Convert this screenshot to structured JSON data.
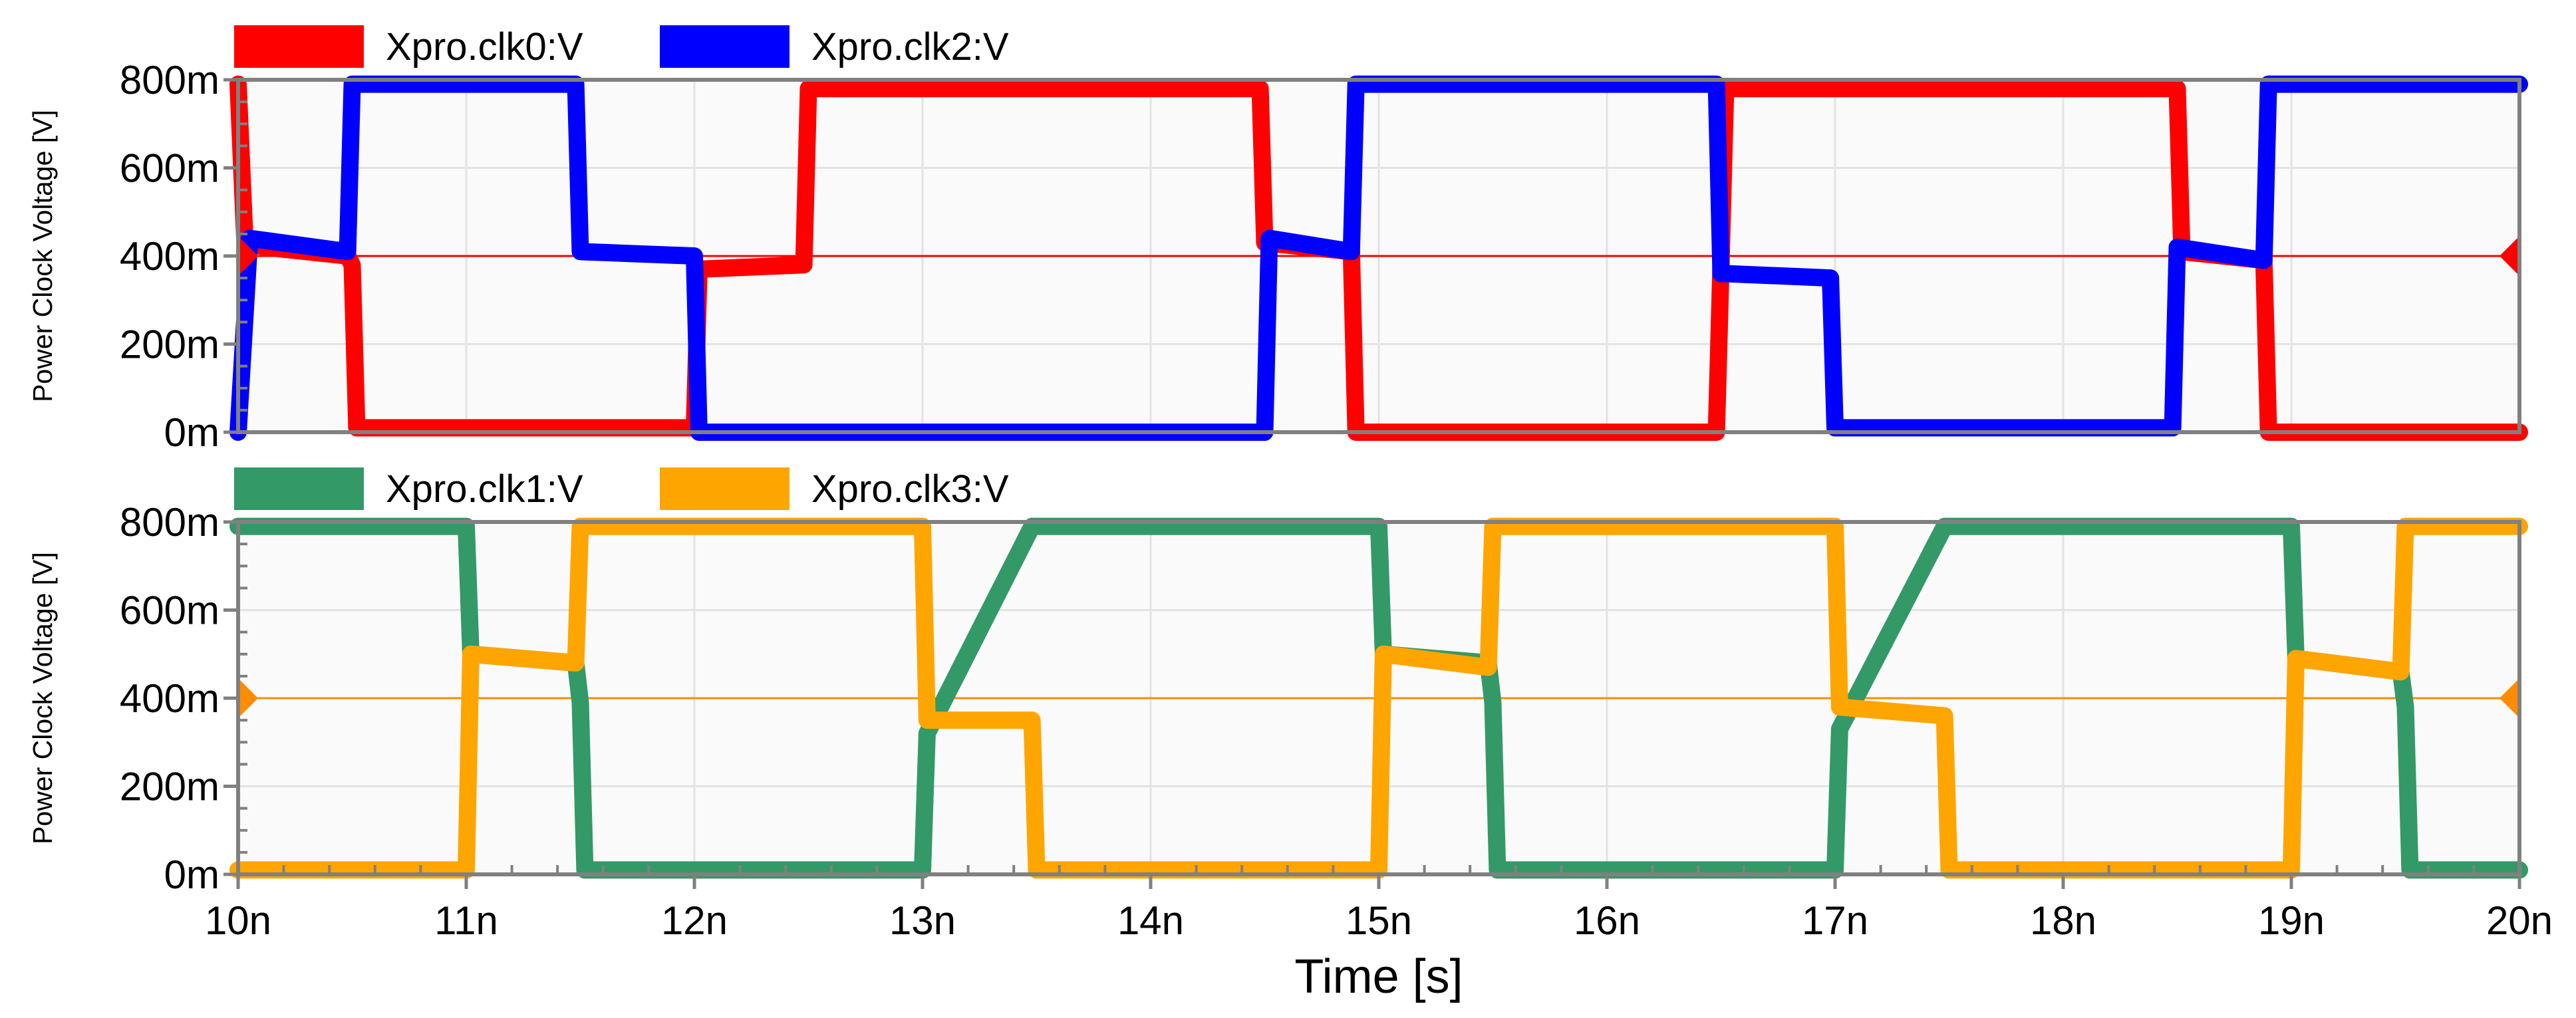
{
  "chart_data": [
    {
      "type": "line",
      "ylabel": "Power Clock Voltage [V]",
      "ylim": [
        0,
        0.8
      ],
      "yticks": [
        0,
        0.2,
        0.4,
        0.6,
        0.8
      ],
      "ytick_labels": [
        "0m",
        "200m",
        "400m",
        "600m",
        "800m"
      ],
      "xlim": [
        10,
        20
      ],
      "grid": true,
      "legend_position": "top-left",
      "reference_line": {
        "y": 0.4,
        "color": "#ff0000"
      },
      "series": [
        {
          "name": "Xpro.clk0:V",
          "color": "#ff0000",
          "points": [
            [
              10,
              0.79
            ],
            [
              10.03,
              0.43
            ],
            [
              10.12,
              0.42
            ],
            [
              10.48,
              0.4
            ],
            [
              10.5,
              0.38
            ],
            [
              10.52,
              0.01
            ],
            [
              12.0,
              0.01
            ],
            [
              12.02,
              0.37
            ],
            [
              12.48,
              0.38
            ],
            [
              12.5,
              0.78
            ],
            [
              14.48,
              0.78
            ],
            [
              14.5,
              0.43
            ],
            [
              14.88,
              0.41
            ],
            [
              14.9,
              0.0
            ],
            [
              16.48,
              0.0
            ],
            [
              16.5,
              0.38
            ],
            [
              16.52,
              0.78
            ],
            [
              18.5,
              0.78
            ],
            [
              18.52,
              0.41
            ],
            [
              18.88,
              0.39
            ],
            [
              18.9,
              0.0
            ],
            [
              20,
              0.0
            ]
          ]
        },
        {
          "name": "Xpro.clk2:V",
          "color": "#0000ff",
          "points": [
            [
              10,
              0.0
            ],
            [
              10.05,
              0.44
            ],
            [
              10.48,
              0.41
            ],
            [
              10.5,
              0.79
            ],
            [
              11.48,
              0.79
            ],
            [
              11.5,
              0.41
            ],
            [
              12.0,
              0.4
            ],
            [
              12.02,
              0.0
            ],
            [
              14.5,
              0.0
            ],
            [
              14.52,
              0.44
            ],
            [
              14.88,
              0.41
            ],
            [
              14.9,
              0.79
            ],
            [
              16.48,
              0.79
            ],
            [
              16.5,
              0.36
            ],
            [
              16.52,
              0.36
            ],
            [
              16.98,
              0.35
            ],
            [
              17.0,
              0.01
            ],
            [
              18.48,
              0.01
            ],
            [
              18.5,
              0.42
            ],
            [
              18.88,
              0.39
            ],
            [
              18.9,
              0.79
            ],
            [
              20,
              0.79
            ]
          ]
        }
      ]
    },
    {
      "type": "line",
      "xlabel": "Time [s]",
      "ylabel": "Power Clock Voltage [V]",
      "ylim": [
        0,
        0.8
      ],
      "yticks": [
        0,
        0.2,
        0.4,
        0.6,
        0.8
      ],
      "ytick_labels": [
        "0m",
        "200m",
        "400m",
        "600m",
        "800m"
      ],
      "xlim": [
        10,
        20
      ],
      "xticks": [
        10,
        11,
        12,
        13,
        14,
        15,
        16,
        17,
        18,
        19,
        20
      ],
      "xtick_labels": [
        "10n",
        "11n",
        "12n",
        "13n",
        "14n",
        "15n",
        "16n",
        "17n",
        "18n",
        "19n",
        "20n"
      ],
      "grid": true,
      "legend_position": "top-left",
      "reference_line": {
        "y": 0.4,
        "color": "#ff8c00"
      },
      "series": [
        {
          "name": "Xpro.clk1:V",
          "color": "#339966",
          "points": [
            [
              10,
              0.79
            ],
            [
              11.0,
              0.79
            ],
            [
              11.02,
              0.5
            ],
            [
              11.48,
              0.48
            ],
            [
              11.5,
              0.39
            ],
            [
              11.52,
              0.01
            ],
            [
              13.0,
              0.01
            ],
            [
              13.02,
              0.32
            ],
            [
              13.48,
              0.79
            ],
            [
              13.5,
              0.79
            ],
            [
              15.0,
              0.79
            ],
            [
              15.02,
              0.5
            ],
            [
              15.48,
              0.48
            ],
            [
              15.5,
              0.39
            ],
            [
              15.52,
              0.01
            ],
            [
              17.0,
              0.01
            ],
            [
              17.02,
              0.33
            ],
            [
              17.48,
              0.79
            ],
            [
              17.5,
              0.79
            ],
            [
              19.0,
              0.79
            ],
            [
              19.02,
              0.49
            ],
            [
              19.48,
              0.46
            ],
            [
              19.5,
              0.38
            ],
            [
              19.52,
              0.01
            ],
            [
              20,
              0.01
            ]
          ]
        },
        {
          "name": "Xpro.clk3:V",
          "color": "#ffa500",
          "points": [
            [
              10,
              0.01
            ],
            [
              11.0,
              0.01
            ],
            [
              11.02,
              0.5
            ],
            [
              11.48,
              0.48
            ],
            [
              11.5,
              0.79
            ],
            [
              13.0,
              0.79
            ],
            [
              13.02,
              0.35
            ],
            [
              13.48,
              0.35
            ],
            [
              13.5,
              0.01
            ],
            [
              15.0,
              0.01
            ],
            [
              15.02,
              0.5
            ],
            [
              15.48,
              0.47
            ],
            [
              15.5,
              0.79
            ],
            [
              17.0,
              0.79
            ],
            [
              17.02,
              0.38
            ],
            [
              17.48,
              0.36
            ],
            [
              17.5,
              0.01
            ],
            [
              19.0,
              0.01
            ],
            [
              19.02,
              0.49
            ],
            [
              19.48,
              0.46
            ],
            [
              19.5,
              0.79
            ],
            [
              20,
              0.79
            ]
          ]
        }
      ]
    }
  ]
}
